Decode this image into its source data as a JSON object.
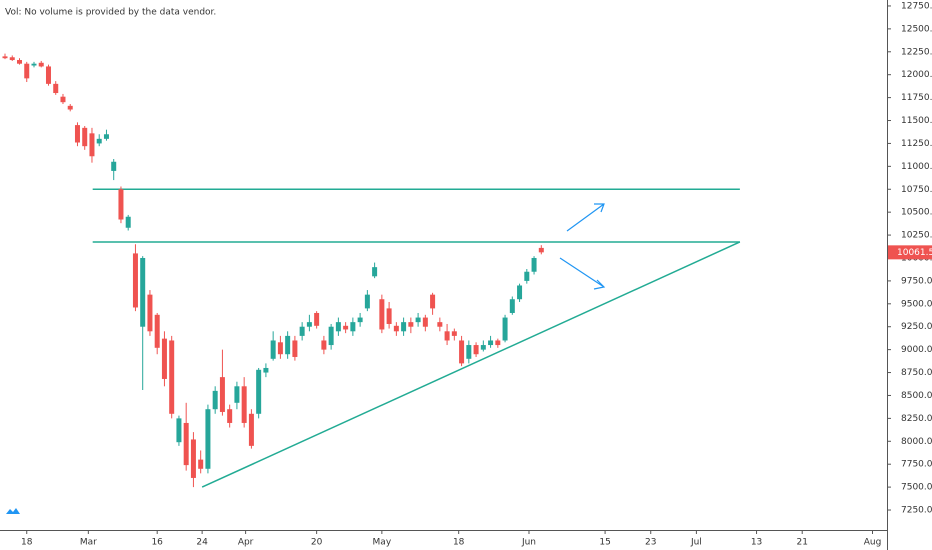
{
  "chart_data": {
    "type": "candlestick",
    "title": "Vol: No volume is provided by the data vendor.",
    "up_color": "#26a69a",
    "down_color": "#ef5350",
    "line_color": "#22ab94",
    "open": [
      12200,
      12190,
      12160,
      12120,
      12100,
      12130,
      12090,
      11900,
      11760,
      11660,
      11450,
      11420,
      11360,
      11250,
      11300,
      10950,
      10750,
      10330,
      10050,
      9250,
      9600,
      9380,
      9120,
      9100,
      7990,
      8200,
      8020,
      7800,
      7700,
      8350,
      8700,
      8350,
      8420,
      8600,
      8300,
      8300,
      8750,
      8900,
      9080,
      8950,
      9100,
      9150,
      9250,
      9400,
      9100,
      9050,
      9200,
      9260,
      9200,
      9300,
      9450,
      9800,
      9550,
      9450,
      9260,
      9200,
      9300,
      9300,
      9350,
      9600,
      9300,
      9200,
      9200,
      9100,
      8900,
      9050,
      9000,
      9050,
      9100,
      9100,
      9400,
      9550,
      9750,
      9850,
      10110
    ],
    "high": [
      12230,
      12210,
      12180,
      12140,
      12140,
      12150,
      12110,
      11930,
      11790,
      11680,
      11480,
      11440,
      11420,
      11350,
      11400,
      11080,
      10780,
      10470,
      10150,
      10020,
      9650,
      9400,
      9200,
      9150,
      8280,
      8420,
      8100,
      7900,
      8400,
      8600,
      9000,
      8400,
      8650,
      8700,
      8350,
      8800,
      8850,
      9200,
      9150,
      9200,
      9150,
      9300,
      9380,
      9420,
      9150,
      9280,
      9350,
      9300,
      9350,
      9400,
      9650,
      9950,
      9600,
      9520,
      9300,
      9350,
      9350,
      9400,
      9380,
      9620,
      9350,
      9280,
      9230,
      9150,
      9100,
      9080,
      9100,
      9150,
      9120,
      9380,
      9580,
      9720,
      9880,
      10020,
      10140
    ],
    "low": [
      12170,
      12150,
      12110,
      11920,
      12080,
      12080,
      11880,
      11780,
      11680,
      11600,
      11220,
      11180,
      11040,
      11220,
      11280,
      10850,
      10380,
      10300,
      9420,
      8560,
      9150,
      8950,
      8600,
      8250,
      7950,
      7680,
      7500,
      7650,
      7650,
      8300,
      8280,
      8150,
      8350,
      8150,
      7920,
      8250,
      8700,
      8880,
      8900,
      8900,
      8880,
      9100,
      9200,
      9230,
      8950,
      9000,
      9150,
      9180,
      9150,
      9250,
      9420,
      9780,
      9180,
      9230,
      9150,
      9150,
      9180,
      9250,
      9200,
      9380,
      9200,
      9050,
      9100,
      8820,
      8850,
      8920,
      8980,
      9020,
      9020,
      9080,
      9380,
      9520,
      9720,
      9820,
      10040
    ],
    "close": [
      12180,
      12160,
      12120,
      11960,
      12120,
      12090,
      11900,
      11800,
      11700,
      11620,
      11260,
      11220,
      11110,
      11300,
      11350,
      11050,
      10420,
      10450,
      9460,
      10000,
      9200,
      9020,
      8680,
      8300,
      8250,
      7740,
      7600,
      7700,
      8350,
      8550,
      8320,
      8200,
      8600,
      8200,
      7950,
      8780,
      8800,
      9100,
      8950,
      9150,
      8920,
      9250,
      9300,
      9260,
      9000,
      9250,
      9300,
      9220,
      9300,
      9350,
      9600,
      9900,
      9220,
      9280,
      9200,
      9300,
      9250,
      9350,
      9250,
      9450,
      9250,
      9100,
      9150,
      8850,
      9050,
      8950,
      9050,
      9100,
      9050,
      9350,
      9550,
      9700,
      9850,
      10000,
      10061.55
    ],
    "last_price": 10061.55,
    "lines": [
      {
        "x": [
          12.1,
          101.4
        ],
        "y": [
          10750,
          10750
        ]
      },
      {
        "x": [
          12.1,
          101.4
        ],
        "y": [
          10175,
          10175
        ]
      },
      {
        "x": [
          27.2,
          101.4
        ],
        "y": [
          7500,
          10175
        ]
      }
    ],
    "xlim": [
      -0.69,
      121.7
    ],
    "xticks": [
      {
        "value": 3,
        "label": "18"
      },
      {
        "value": 11.5,
        "label": "Mar"
      },
      {
        "value": 21,
        "label": "16"
      },
      {
        "value": 27.2,
        "label": "24"
      },
      {
        "value": 33.2,
        "label": "Apr"
      },
      {
        "value": 43,
        "label": "20"
      },
      {
        "value": 52,
        "label": "May"
      },
      {
        "value": 62.6,
        "label": "18"
      },
      {
        "value": 72.3,
        "label": "Jun"
      },
      {
        "value": 82.8,
        "label": "15"
      },
      {
        "value": 89.1,
        "label": "23"
      },
      {
        "value": 95.4,
        "label": "Jul"
      },
      {
        "value": 103.7,
        "label": "13"
      },
      {
        "value": 110,
        "label": "21"
      },
      {
        "value": 119.7,
        "label": "Aug"
      }
    ],
    "ylim": [
      7032,
      12815
    ],
    "yticks": [
      {
        "value": 7250,
        "label": "7250.00"
      },
      {
        "value": 7500,
        "label": "7500.00"
      },
      {
        "value": 7750,
        "label": "7750.00"
      },
      {
        "value": 8000,
        "label": "8000.00"
      },
      {
        "value": 8250,
        "label": "8250.00"
      },
      {
        "value": 8500,
        "label": "8500.00"
      },
      {
        "value": 8750,
        "label": "8750.00"
      },
      {
        "value": 9000,
        "label": "9000.00"
      },
      {
        "value": 9250,
        "label": "9250.00"
      },
      {
        "value": 9500,
        "label": "9500.00"
      },
      {
        "value": 9750,
        "label": "9750.00"
      },
      {
        "value": 10000,
        "label": "10000.00"
      },
      {
        "value": 10250,
        "label": "10250.00"
      },
      {
        "value": 10500,
        "label": "10500.00"
      },
      {
        "value": 10750,
        "label": "10750.00"
      },
      {
        "value": 11000,
        "label": "11000.00"
      },
      {
        "value": 11250,
        "label": "11250.00"
      },
      {
        "value": 11500,
        "label": "11500.00"
      },
      {
        "value": 11750,
        "label": "11750.00"
      },
      {
        "value": 12000,
        "label": "12000.00"
      },
      {
        "value": 12250,
        "label": "12250.00"
      },
      {
        "value": 12500,
        "label": "12500.00"
      },
      {
        "value": 12750,
        "label": "12750.00"
      }
    ]
  }
}
